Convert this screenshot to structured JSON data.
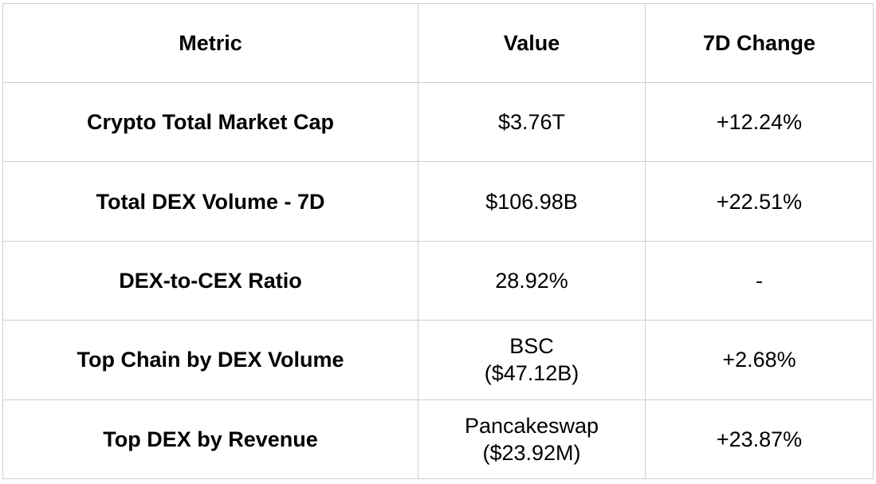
{
  "table": {
    "headers": [
      "Metric",
      "Value",
      "7D Change"
    ],
    "rows": [
      {
        "metric": "Crypto Total Market Cap",
        "value_line1": "$3.76T",
        "value_line2": "",
        "change": "+12.24%"
      },
      {
        "metric": "Total DEX Volume - 7D",
        "value_line1": "$106.98B",
        "value_line2": "",
        "change": "+22.51%"
      },
      {
        "metric": "DEX-to-CEX Ratio",
        "value_line1": "28.92%",
        "value_line2": "",
        "change": "-"
      },
      {
        "metric": "Top Chain by DEX Volume",
        "value_line1": "BSC",
        "value_line2": "($47.12B)",
        "change": "+2.68%"
      },
      {
        "metric": "Top DEX by Revenue",
        "value_line1": "Pancakeswap",
        "value_line2": "($23.92M)",
        "change": "+23.87%"
      }
    ]
  }
}
